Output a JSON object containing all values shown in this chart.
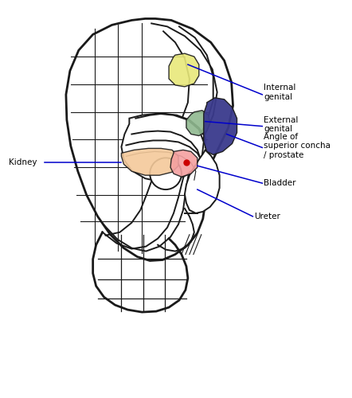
{
  "background_color": "#ffffff",
  "line_color": "#1a1a1a",
  "annotation_line_color": "#0000cc",
  "annotation_text_color": "#000000",
  "colors": {
    "internal_genital": "#e8e87a",
    "external_genital": "#8fb88f",
    "angle_prostate": "#3a3a8c",
    "kidney": "#f4c99a",
    "bladder": "#f4a0a0",
    "red_dot": "#cc0000"
  },
  "labels": {
    "internal_genital": "Internal\ngenital",
    "external_genital": "External\ngenital",
    "angle_prostate": "Angle of\nsuperior concha\n/ prostate",
    "bladder": "Bladder",
    "ureter": "Ureter",
    "kidney": "Kidney"
  },
  "figsize": [
    4.42,
    5.0
  ],
  "dpi": 100
}
